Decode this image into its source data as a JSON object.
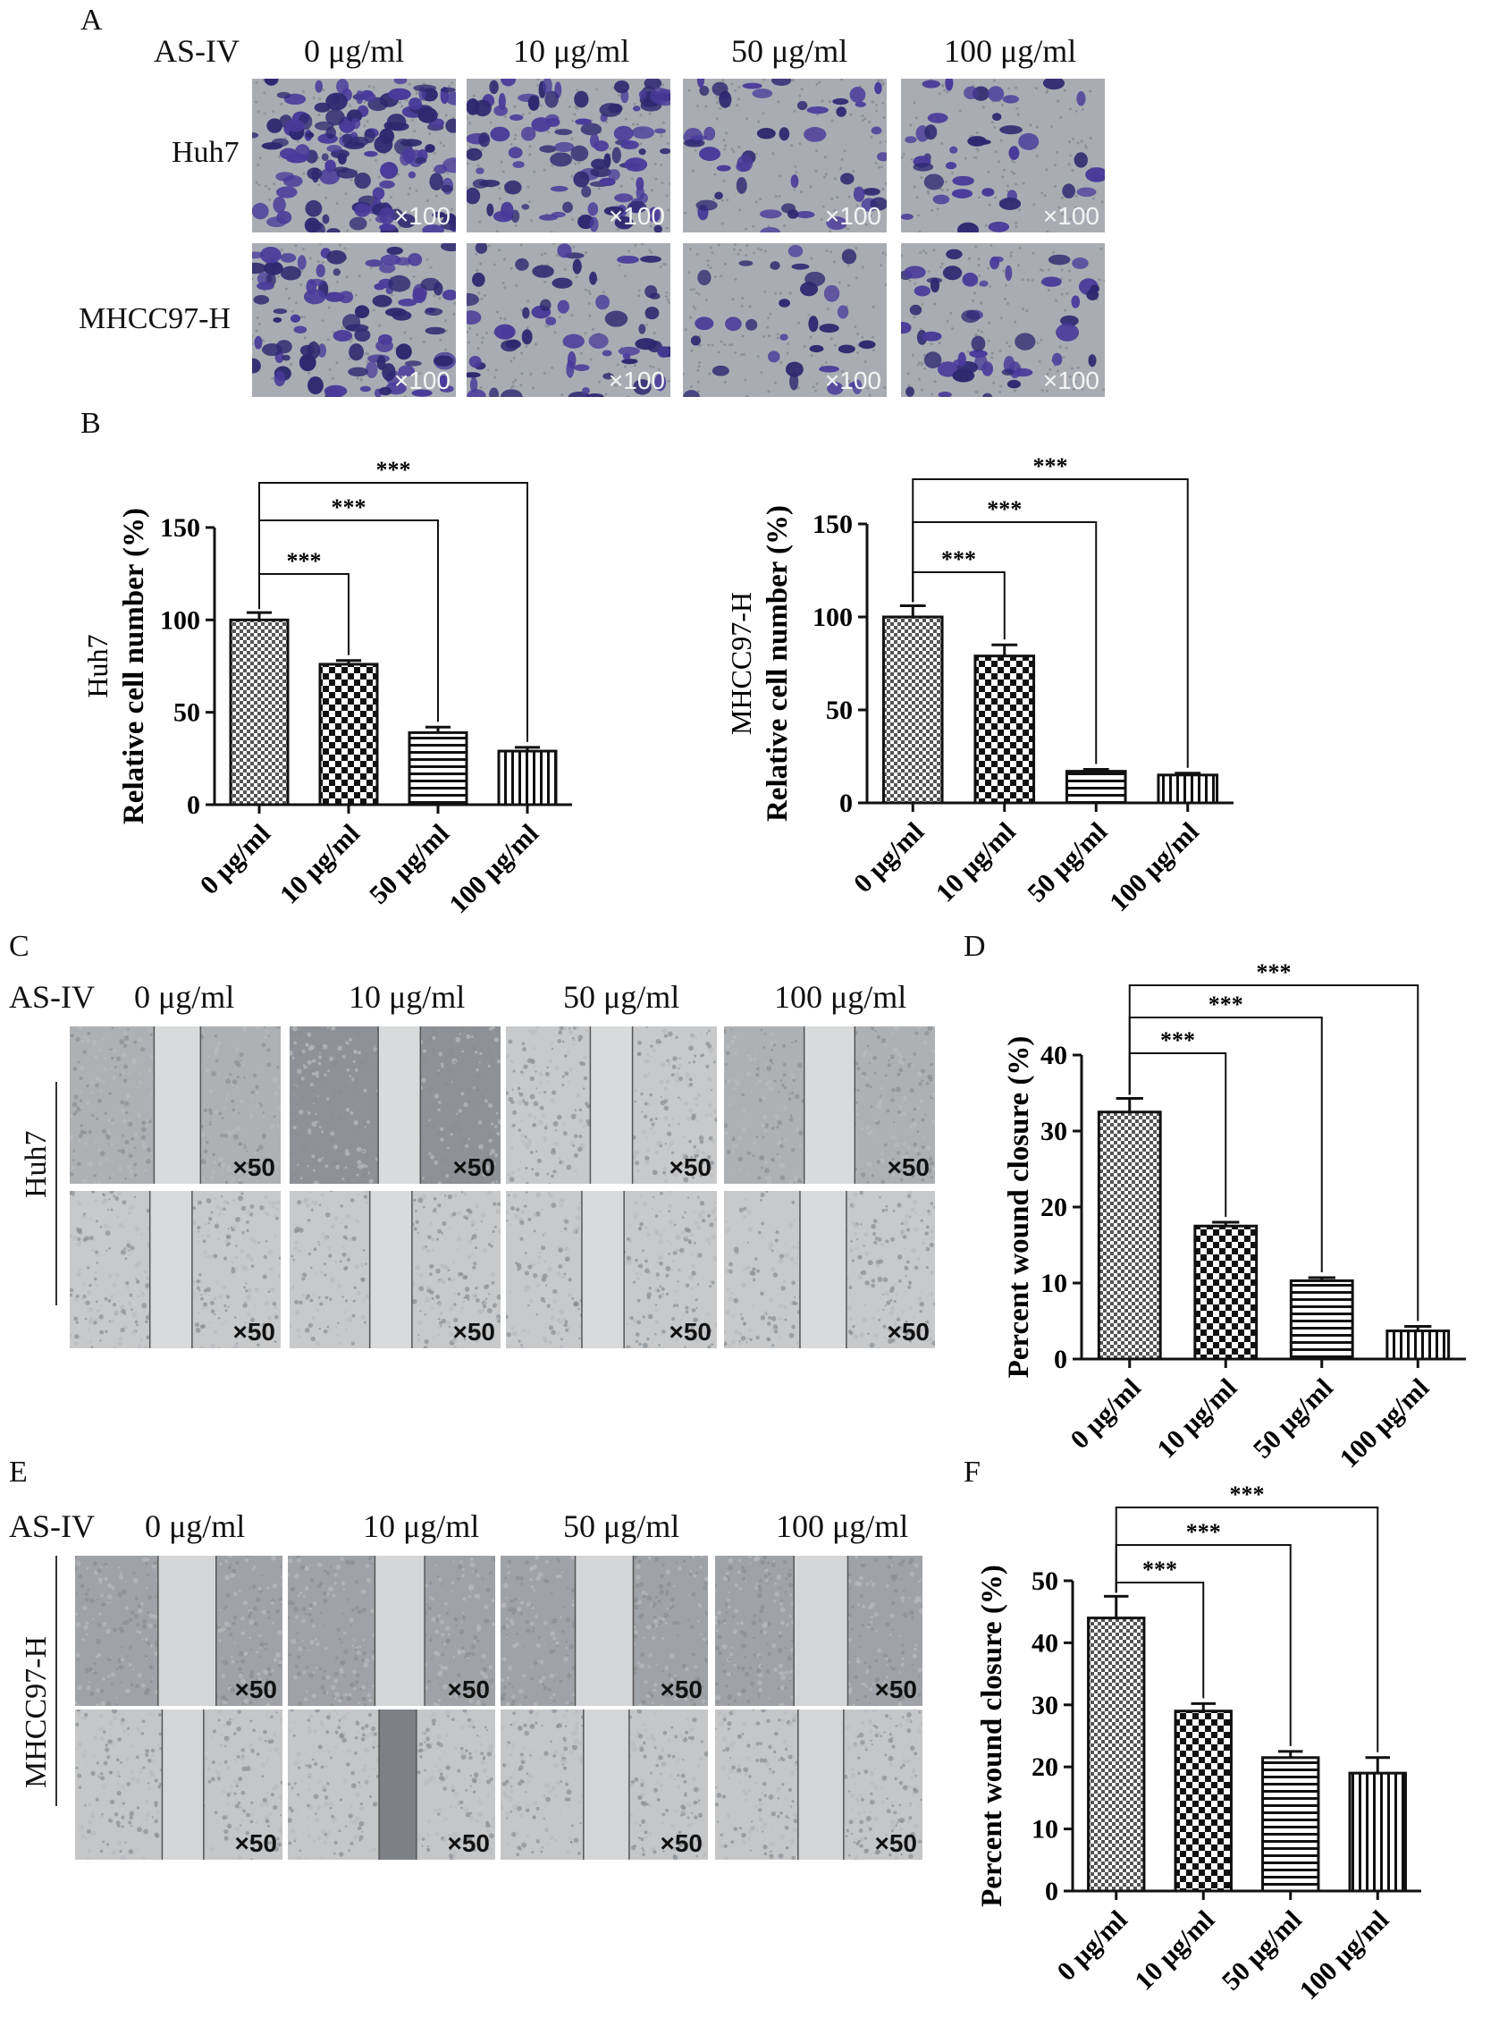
{
  "panel_A": {
    "letter": "A",
    "treatment_label": "AS-IV",
    "concentrations": [
      "0 μg/ml",
      "10 μg/ml",
      "50 μg/ml",
      "100 μg/ml"
    ],
    "rows": [
      "Huh7",
      "MHCC97-H"
    ],
    "magnification": "×100"
  },
  "panel_C": {
    "letter": "C",
    "treatment_label": "AS-IV",
    "concentrations": [
      "0 μg/ml",
      "10 μg/ml",
      "50 μg/ml",
      "100 μg/ml"
    ],
    "row_label": "Huh7",
    "magnification": "×50"
  },
  "panel_E": {
    "letter": "E",
    "treatment_label": "AS-IV",
    "concentrations": [
      "0 μg/ml",
      "10 μg/ml",
      "50 μg/ml",
      "100 μg/ml"
    ],
    "row_label": "MHCC97-H",
    "magnification": "×50"
  },
  "colors": {
    "crystal_violet": "#4a3a9a",
    "membrane_bg": "#a9adb3",
    "wound_bg": "#cfd1d3",
    "bar_fill": "#2a2a2a"
  },
  "chart_data": [
    {
      "panel": "B",
      "type": "bar",
      "categories": [
        "0 μg/ml",
        "10 μg/ml",
        "50 μg/ml",
        "100 μg/ml"
      ],
      "values": [
        100,
        76,
        39,
        29
      ],
      "errors": [
        4,
        2,
        3,
        2
      ],
      "ylabel_line1": "Huh7",
      "ylabel_line2": "Relative cell number (%)",
      "ylim": [
        0,
        150
      ],
      "yticks": [
        0,
        50,
        100,
        150
      ],
      "patterns": [
        "fine-check",
        "checker",
        "horizontal",
        "vertical"
      ],
      "significance": [
        {
          "from": 0,
          "to": 1,
          "label": "***"
        },
        {
          "from": 0,
          "to": 2,
          "label": "***"
        },
        {
          "from": 0,
          "to": 3,
          "label": "***"
        }
      ]
    },
    {
      "panel": "B2",
      "type": "bar",
      "categories": [
        "0 μg/ml",
        "10 μg/ml",
        "50 μg/ml",
        "100 μg/ml"
      ],
      "values": [
        100,
        79,
        17,
        15
      ],
      "errors": [
        6,
        6,
        1,
        1
      ],
      "ylabel_line1": "MHCC97-H",
      "ylabel_line2": "Relative cell number  (%)",
      "ylim": [
        0,
        150
      ],
      "yticks": [
        0,
        50,
        100,
        150
      ],
      "patterns": [
        "fine-check",
        "checker",
        "horizontal",
        "vertical"
      ],
      "significance": [
        {
          "from": 0,
          "to": 1,
          "label": "***"
        },
        {
          "from": 0,
          "to": 2,
          "label": "***"
        },
        {
          "from": 0,
          "to": 3,
          "label": "***"
        }
      ]
    },
    {
      "panel": "D",
      "type": "bar",
      "categories": [
        "0 μg/ml",
        "10 μg/ml",
        "50 μg/ml",
        "100 μg/ml"
      ],
      "values": [
        32.5,
        17.5,
        10.3,
        3.7
      ],
      "errors": [
        1.8,
        0.5,
        0.4,
        0.6
      ],
      "ylabel_line1": "",
      "ylabel_line2": "Percent wound closure (%)",
      "ylim": [
        0,
        40
      ],
      "yticks": [
        0,
        10,
        20,
        30,
        40
      ],
      "patterns": [
        "fine-check",
        "checker",
        "horizontal",
        "vertical"
      ],
      "significance": [
        {
          "from": 0,
          "to": 1,
          "label": "***"
        },
        {
          "from": 0,
          "to": 2,
          "label": "***"
        },
        {
          "from": 0,
          "to": 3,
          "label": "***"
        }
      ]
    },
    {
      "panel": "F",
      "type": "bar",
      "categories": [
        "0 μg/ml",
        "10 μg/ml",
        "50 μg/ml",
        "100 μg/ml"
      ],
      "values": [
        44,
        29,
        21.5,
        19
      ],
      "errors": [
        3.5,
        1.2,
        1,
        2.5
      ],
      "ylabel_line1": "",
      "ylabel_line2": "Percent wound closure (%)",
      "ylim": [
        0,
        50
      ],
      "yticks": [
        0,
        10,
        20,
        30,
        40,
        50
      ],
      "patterns": [
        "fine-check",
        "checker",
        "horizontal",
        "vertical"
      ],
      "significance": [
        {
          "from": 0,
          "to": 1,
          "label": "***"
        },
        {
          "from": 0,
          "to": 2,
          "label": "***"
        },
        {
          "from": 0,
          "to": 3,
          "label": "***"
        }
      ]
    }
  ],
  "chart_letters": {
    "B": "B",
    "D": "D",
    "F": "F"
  }
}
